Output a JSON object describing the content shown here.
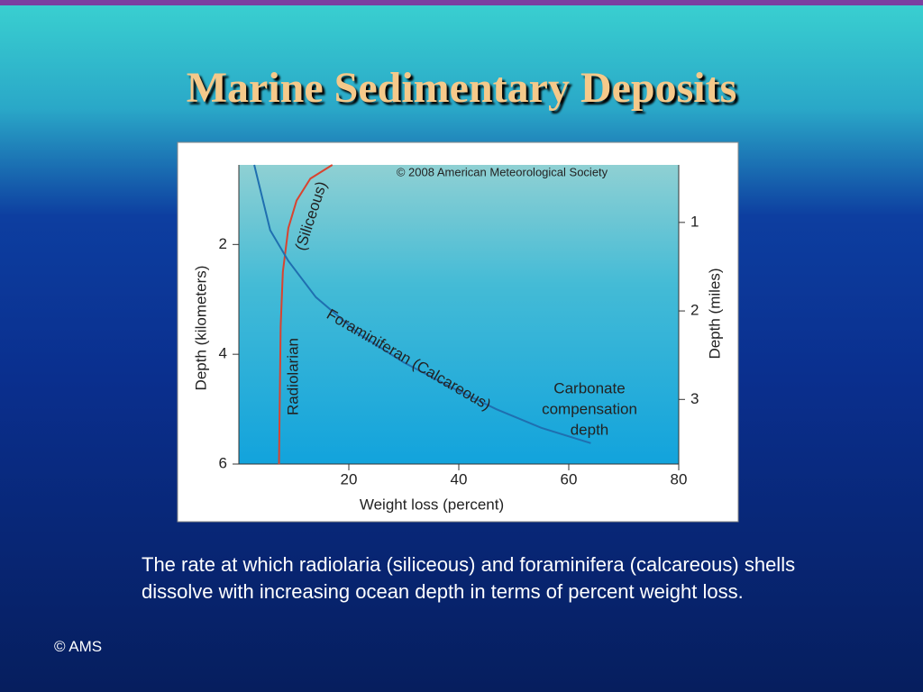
{
  "title": "Marine Sedimentary Deposits",
  "caption": "The rate at which radiolaria (siliceous) and foraminifera (calcareous) shells dissolve with increasing ocean depth in terms of percent weight loss.",
  "credit": "© AMS",
  "chart_data": {
    "type": "line",
    "copyright": "© 2008 American Meteorological Society",
    "x_label": "Weight loss (percent)",
    "y_label": "Depth (kilometers)",
    "y2_label": "Depth (miles)",
    "xlim": [
      0,
      80
    ],
    "xticks": [
      20,
      40,
      60,
      80
    ],
    "ylim": [
      0.55,
      6
    ],
    "yticks": [
      2,
      4,
      6
    ],
    "y_inverted": true,
    "y2lim": [
      0.35,
      3.73
    ],
    "y2ticks": [
      1,
      2,
      3
    ],
    "series": [
      {
        "name": "Radiolarian",
        "color": "#d9432f",
        "x": [
          17,
          13,
          10.5,
          9,
          8,
          7.6,
          7.3
        ],
        "values": [
          0.55,
          0.8,
          1.2,
          1.7,
          2.5,
          3.5,
          6
        ]
      },
      {
        "name": "Foraminiferan (Calcareous)",
        "color": "#1f6fb0",
        "x": [
          2.8,
          5.7,
          9,
          14,
          22,
          30,
          38.6,
          46.8,
          55,
          64
        ],
        "values": [
          0.55,
          1.74,
          2.3,
          2.96,
          3.64,
          4.15,
          4.6,
          5.0,
          5.34,
          5.62
        ]
      }
    ],
    "annotations": [
      "(Siliceous)"
    ],
    "ccd_label": [
      "Carbonate",
      "compensation",
      "depth"
    ]
  }
}
